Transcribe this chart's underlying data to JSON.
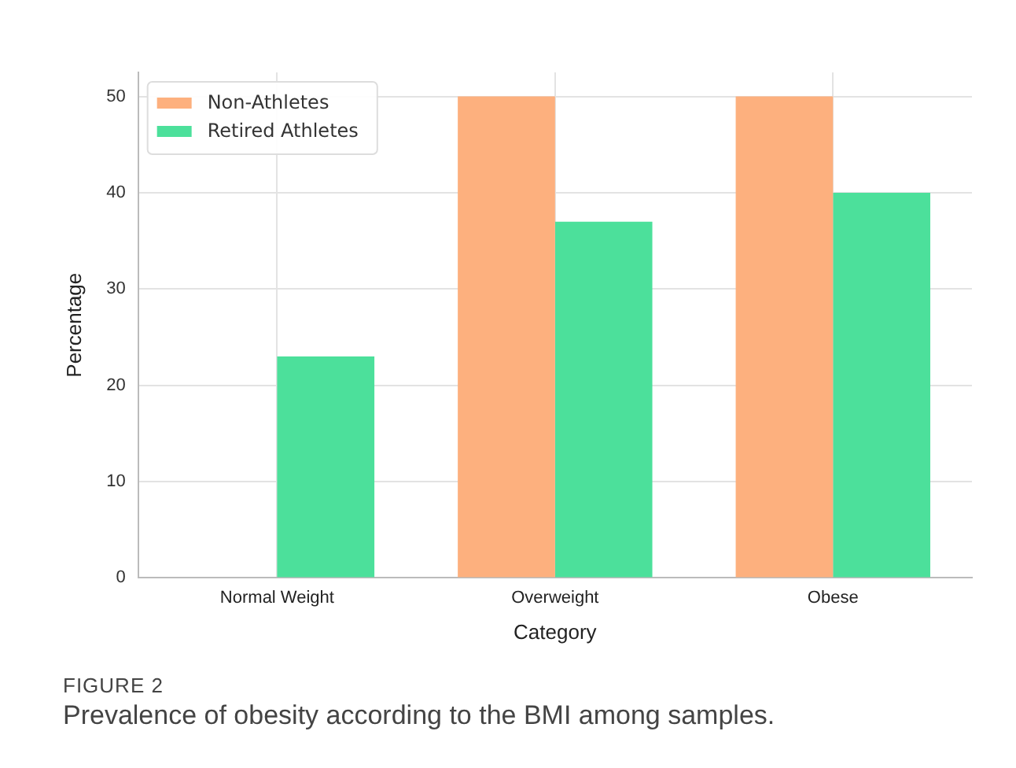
{
  "chart_data": {
    "type": "bar",
    "categories": [
      "Normal Weight",
      "Overweight",
      "Obese"
    ],
    "series": [
      {
        "name": "Non-Athletes",
        "color": "#fdb07e",
        "values": [
          0,
          50,
          50
        ]
      },
      {
        "name": "Retired Athletes",
        "color": "#4ce09b",
        "values": [
          23,
          37,
          40
        ]
      }
    ],
    "xlabel": "Category",
    "ylabel": "Percentage",
    "ylim": [
      0,
      52.5
    ],
    "yticks": [
      0,
      10,
      20,
      30,
      40,
      50
    ],
    "grid": true,
    "legend": "top left",
    "annotations": [
      "FIGURE 2",
      "Prevalence of obesity according to the BMI among samples."
    ]
  }
}
